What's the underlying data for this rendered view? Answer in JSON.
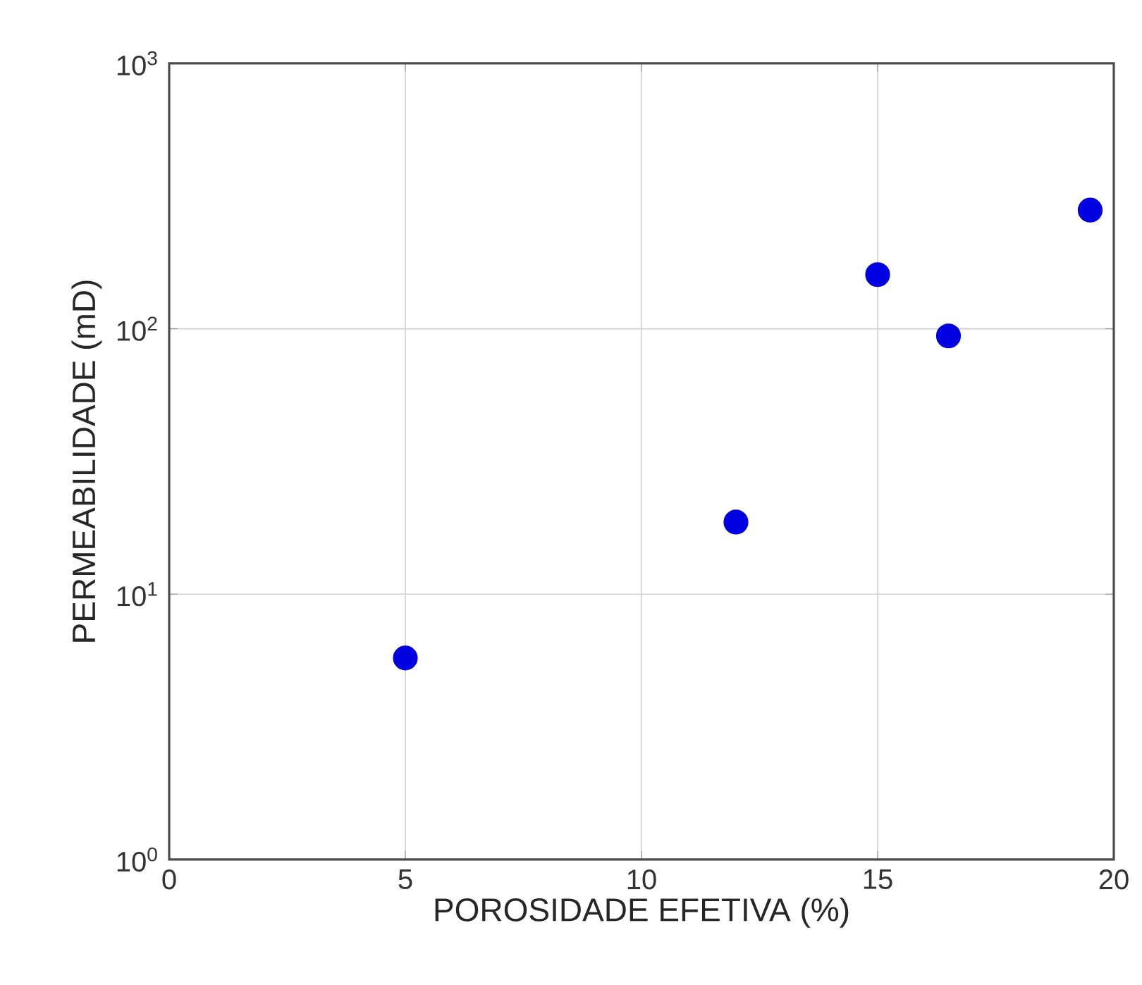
{
  "chart_data": {
    "type": "scatter",
    "xlabel": "POROSIDADE EFETIVA (%)",
    "ylabel": "PERMEABILIDADE (mD)",
    "x": [
      5,
      12,
      15,
      16.5,
      19.5
    ],
    "series": [
      {
        "color": "#0000e0",
        "values": [
          5.75,
          18.7,
          160,
          94,
          280
        ]
      }
    ],
    "xlim": [
      0,
      20
    ],
    "xticks": [
      0,
      5,
      10,
      15,
      20
    ],
    "ylim": [
      1,
      1000
    ],
    "yticks": [
      {
        "value": 1,
        "label": "10$^{0}$"
      },
      {
        "value": 10,
        "label": "10$^{1}$"
      },
      {
        "value": 100,
        "label": "10$^{2}$"
      },
      {
        "value": 1000,
        "label": "10$^{3}$"
      }
    ],
    "log": "y",
    "grid": true,
    "marker": "circle"
  }
}
